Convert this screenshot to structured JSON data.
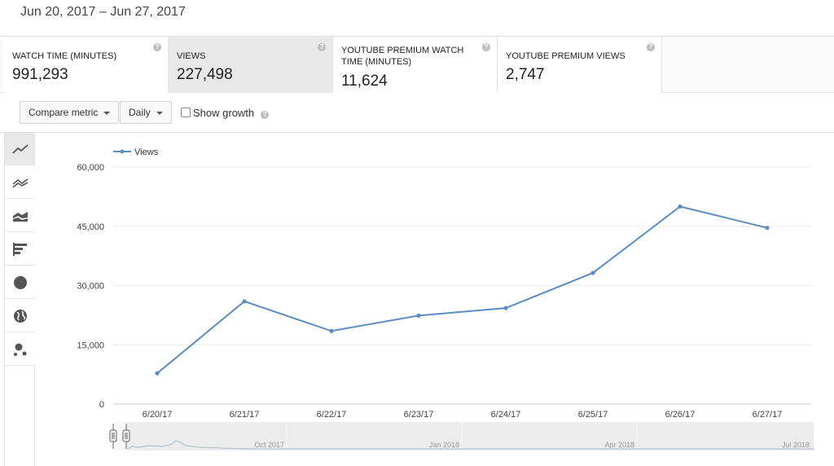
{
  "date_range": "Jun 20, 2017 – Jun 27, 2017",
  "metrics": [
    {
      "label": "WATCH TIME (MINUTES)",
      "value": "991,293",
      "selected": false
    },
    {
      "label": "VIEWS",
      "value": "227,498",
      "selected": true
    },
    {
      "label": "YOUTUBE PREMIUM WATCH TIME (MINUTES)",
      "value": "11,624",
      "selected": false
    },
    {
      "label": "YOUTUBE PREMIUM VIEWS",
      "value": "2,747",
      "selected": false
    }
  ],
  "help_glyph": "?",
  "controls": {
    "compare_metric": "Compare metric",
    "interval": "Daily",
    "show_growth": "Show growth",
    "show_growth_checked": false
  },
  "chart_types": [
    "line-chart-icon",
    "multi-line-chart-icon",
    "stacked-area-icon",
    "bar-chart-icon",
    "pie-chart-icon",
    "map-globe-icon",
    "bubble-chart-icon"
  ],
  "colors": {
    "series": "#5b8cc4",
    "grid": "#ebebeb",
    "axis": "#cccccc",
    "accent_selected": "#e8e8e8"
  },
  "chart_data": {
    "type": "line",
    "legend": "top-left",
    "grid": true,
    "x": [
      "6/20/17",
      "6/21/17",
      "6/22/17",
      "6/23/17",
      "6/24/17",
      "6/25/17",
      "6/26/17",
      "6/27/17"
    ],
    "series": [
      {
        "name": "Views",
        "values": [
          7800,
          26000,
          18500,
          22400,
          24300,
          33200,
          50000,
          44600
        ]
      }
    ],
    "ylim": [
      0,
      60000
    ],
    "yticks": [
      0,
      15000,
      30000,
      45000,
      60000
    ],
    "ytick_labels": [
      "0",
      "15,000",
      "30,000",
      "45,000",
      "60,000"
    ],
    "navigator": {
      "labels": [
        "Oct 2017",
        "Jan 2018",
        "Apr 2018",
        "Jul 2018"
      ]
    }
  }
}
